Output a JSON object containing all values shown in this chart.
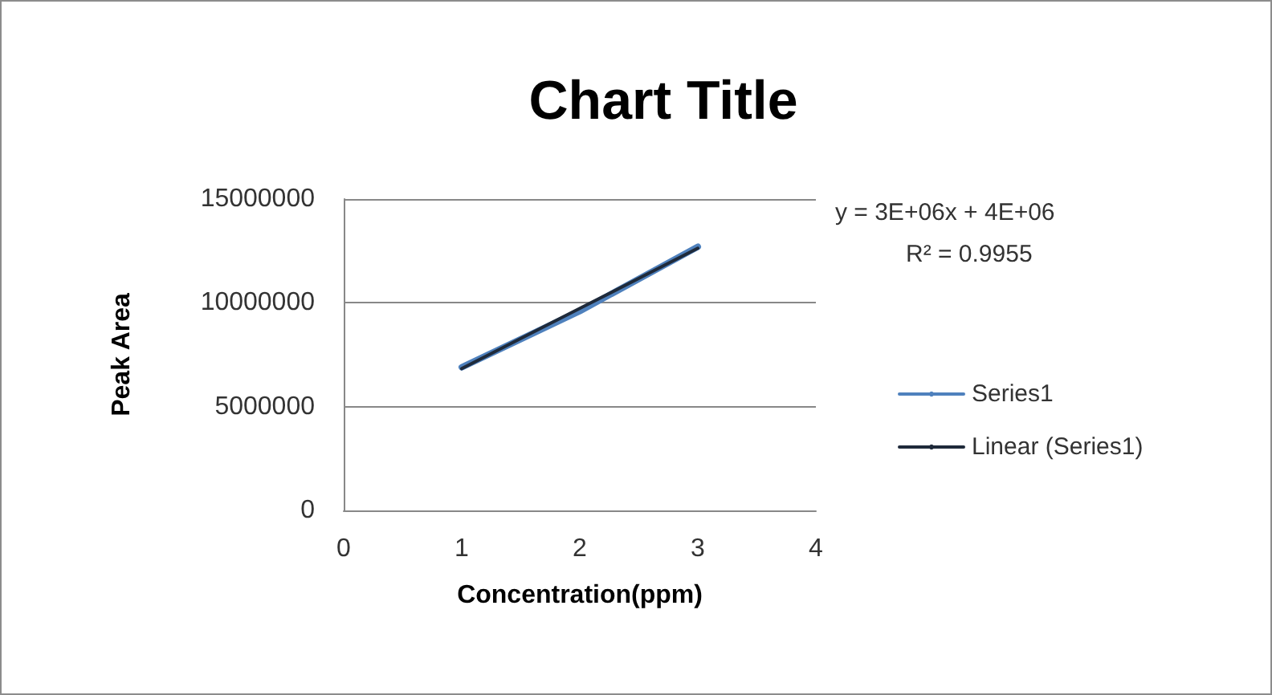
{
  "chart_data": {
    "type": "line",
    "title": "Chart Title",
    "xlabel": "Concentration(ppm)",
    "ylabel": "Peak Area",
    "series": [
      {
        "name": "Series1",
        "color": "#4f81bd",
        "x": [
          1,
          2,
          3
        ],
        "values": [
          6900000,
          9600000,
          12700000
        ]
      },
      {
        "name": "Linear (Series1)",
        "type": "line",
        "color": "#1f2a3a",
        "x": [
          1,
          2,
          3
        ],
        "values": [
          6830000,
          9730000,
          12630000
        ]
      }
    ],
    "xlim": [
      0,
      4
    ],
    "xticks": [
      0,
      1,
      2,
      3,
      4
    ],
    "ylim": [
      0,
      15000000
    ],
    "yticks": [
      0,
      5000000,
      10000000,
      15000000
    ],
    "annotations": [
      "y = 3E+06x + 4E+06",
      "R² = 0.9955"
    ],
    "grid": "y",
    "legend": "right",
    "marker": "none",
    "line_style": "solid"
  }
}
